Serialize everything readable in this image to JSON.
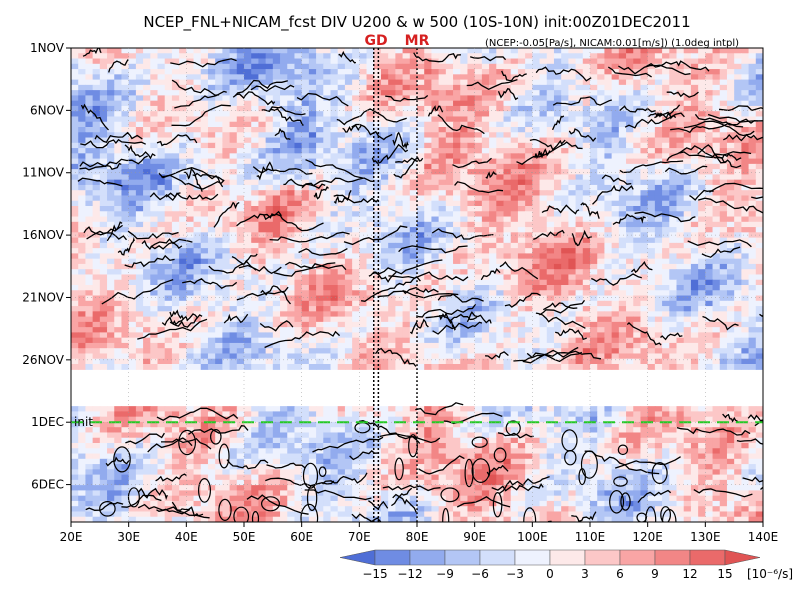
{
  "chart_data": {
    "type": "heatmap",
    "title": "NCEP_FNL+NICAM_fcst DIV U200 & w 500 (10S-10N) init:00Z01DEC2011",
    "subtitle": "(NCEP:-0.05[Pa/s], NICAM:0.01[m/s]) (1.0deg intpl)",
    "x_ticks": [
      "20E",
      "30E",
      "40E",
      "50E",
      "60E",
      "70E",
      "80E",
      "90E",
      "100E",
      "110E",
      "120E",
      "130E",
      "140E"
    ],
    "x_range": [
      20,
      140
    ],
    "y_ticks": [
      "1NOV",
      "6NOV",
      "11NOV",
      "16NOV",
      "21NOV",
      "26NOV",
      "1DEC",
      "6DEC"
    ],
    "y_tick_days": [
      0,
      5,
      10,
      15,
      20,
      25,
      30,
      35
    ],
    "y_range_days": [
      0,
      38
    ],
    "forecast_init_label": "init",
    "forecast_init_day": 30,
    "forecast_line_color": "#22cc22",
    "markers": [
      {
        "label": "GD",
        "lons": [
          72.5,
          73.3
        ],
        "color": "#d62020"
      },
      {
        "label": "MR",
        "lons": [
          80.0
        ],
        "color": "#d62020"
      }
    ],
    "colorbar": {
      "levels": [
        "-15",
        "-12",
        "-9",
        "-6",
        "-3",
        "0",
        "3",
        "6",
        "9",
        "12",
        "15"
      ],
      "unit": "[10⁻⁶/s]",
      "colors": [
        "#4f6ed6",
        "#6f8ce3",
        "#92abee",
        "#b3c6f5",
        "#d3dffb",
        "#eef2fe",
        "#fde9e9",
        "#fcc7c7",
        "#f9a5a5",
        "#f28686",
        "#ea6a6a",
        "#e05454"
      ]
    }
  }
}
